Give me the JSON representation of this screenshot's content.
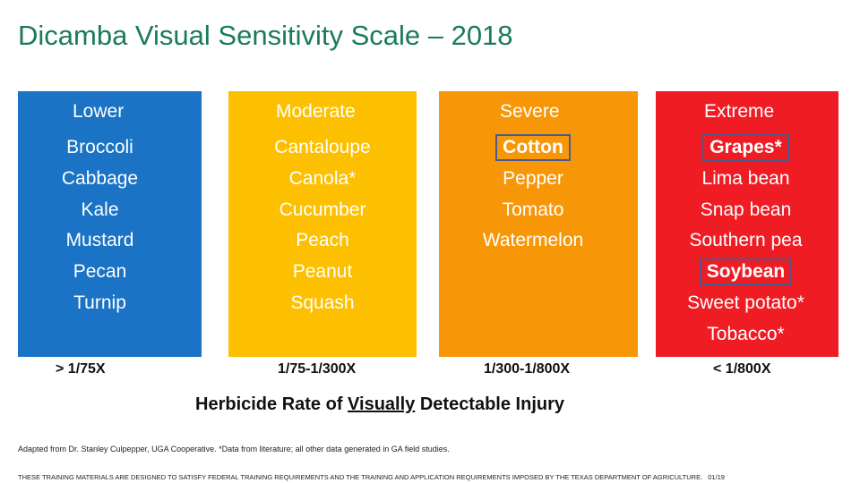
{
  "title": "Dicamba Visual Sensitivity Scale – 2018",
  "columns": [
    {
      "header": "Lower",
      "color": "#1a73c4",
      "crops": [
        "Broccoli",
        "Cabbage",
        "Kale",
        "Mustard",
        "Pecan",
        "Turnip"
      ],
      "rate": "> 1/75X"
    },
    {
      "header": "Moderate",
      "color": "#fdc000",
      "crops": [
        "Cantaloupe",
        "Canola*",
        "Cucumber",
        "Peach",
        "Peanut",
        "Squash"
      ],
      "rate": "1/75-1/300X"
    },
    {
      "header": "Severe",
      "color": "#f79708",
      "crops": [
        "Cotton",
        "Pepper",
        "Tomato",
        "Watermelon"
      ],
      "rate": "1/300-1/800X"
    },
    {
      "header": "Extreme",
      "color": "#ef1c24",
      "crops": [
        "Grapes*",
        "Lima bean",
        "Snap bean",
        "Southern pea",
        "Soybean",
        "Sweet potato*",
        "Tobacco*"
      ],
      "rate": "< 1/800X"
    }
  ],
  "highlighted_crops": [
    "Cotton",
    "Grapes*",
    "Soybean"
  ],
  "caption": {
    "before": "Herbicide Rate of ",
    "underlined": "Visually",
    "after": " Detectable Injury"
  },
  "note": "Adapted from Dr. Stanley Culpepper, UGA Cooperative. *Data from literature; all other data generated in GA field studies.",
  "footer": "THESE TRAINING MATERIALS ARE DESIGNED TO SATISFY FEDERAL TRAINING REQUIREMENTS AND THE TRAINING AND APPLICATION REQUIREMENTS IMPOSED BY THE TEXAS DEPARTMENT OF AGRICULTURE.",
  "page_number": "01/19"
}
